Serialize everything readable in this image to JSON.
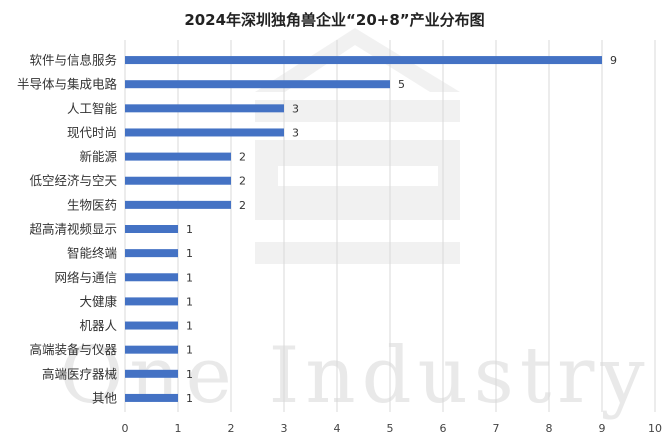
{
  "chart_data": {
    "type": "bar",
    "orientation": "horizontal",
    "title": "2024年深圳独角兽企业“20+8”产业分布图",
    "categories": [
      "软件与信息服务",
      "半导体与集成电路",
      "人工智能",
      "现代时尚",
      "新能源",
      "低空经济与空天",
      "生物医药",
      "超高清视频显示",
      "智能终端",
      "网络与通信",
      "大健康",
      "机器人",
      "高端装备与仪器",
      "高端医疗器械",
      "其他"
    ],
    "values": [
      9,
      5,
      3,
      3,
      2,
      2,
      2,
      1,
      1,
      1,
      1,
      1,
      1,
      1,
      1
    ],
    "xlim": [
      0,
      10
    ],
    "xticks": [
      0,
      1,
      2,
      3,
      4,
      5,
      6,
      7,
      8,
      9,
      10
    ],
    "xlabel": "",
    "ylabel": "",
    "grid": true,
    "data_labels": true,
    "bar_color": "#4472c4"
  },
  "watermark": {
    "text": "One Industry"
  }
}
